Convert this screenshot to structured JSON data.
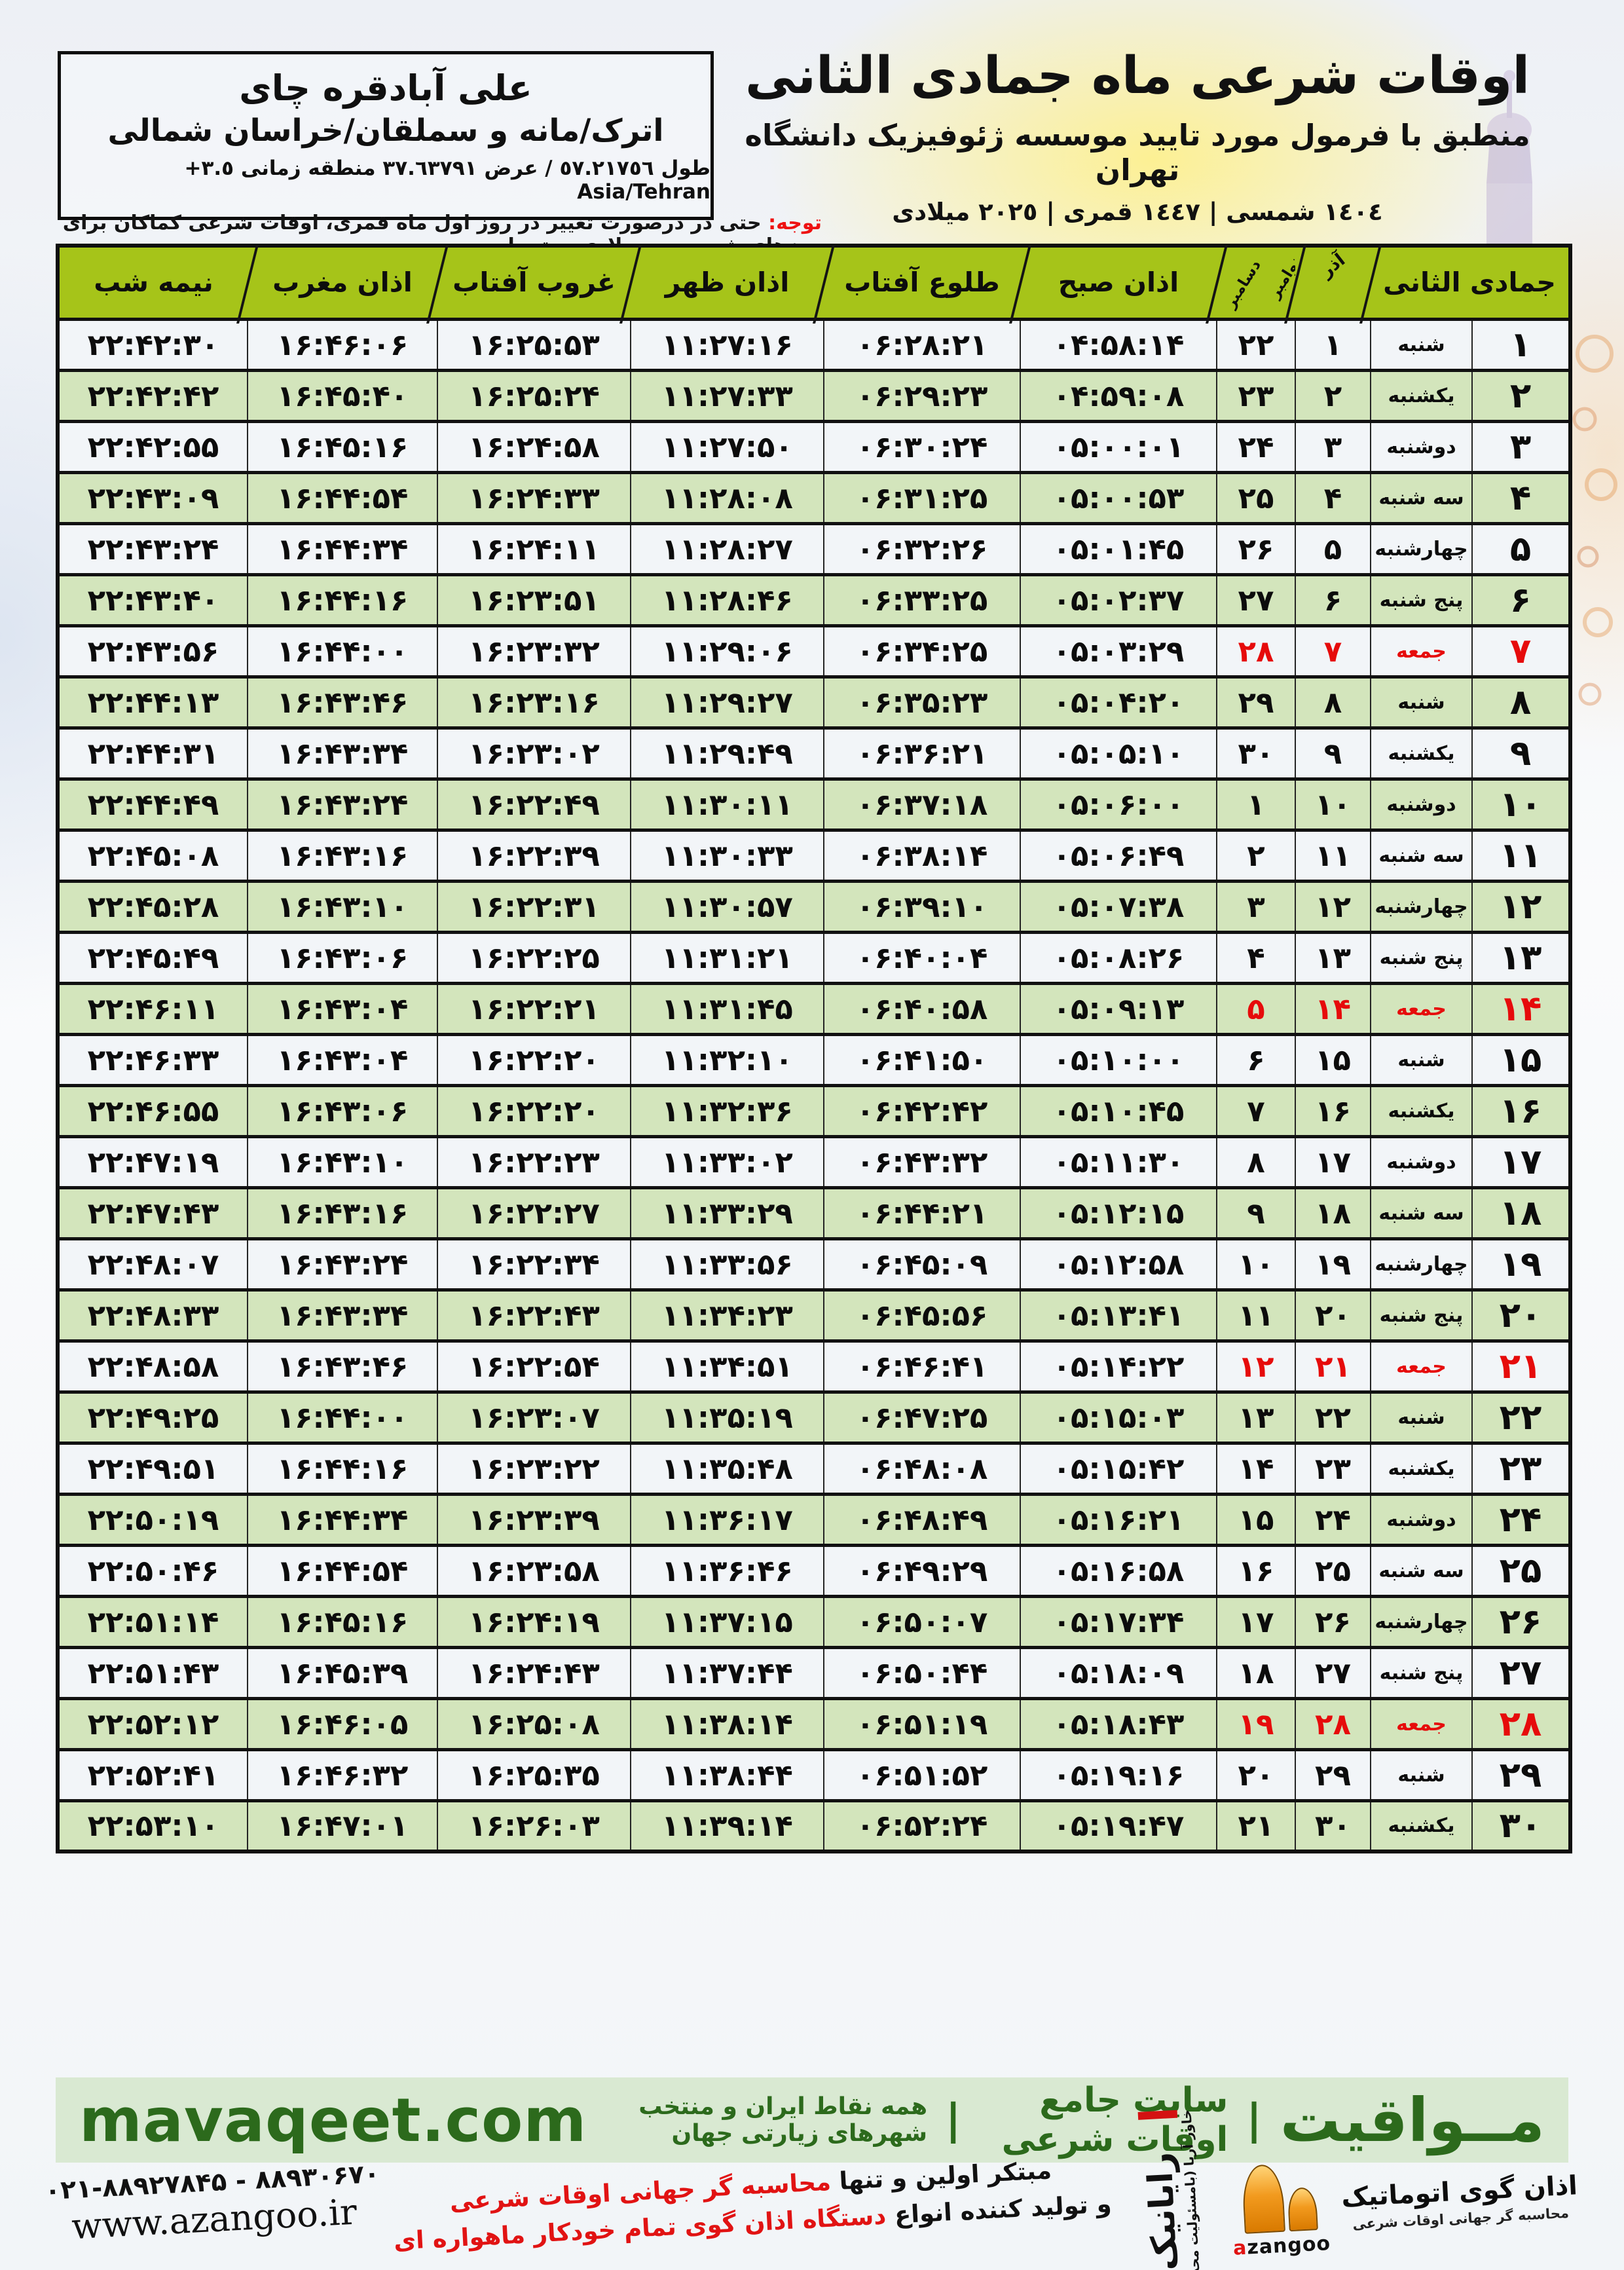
{
  "header": {
    "title": "اوقات شرعی ماه جمادی الثانی",
    "subtitle": "منطبق با فرمول مورد تایید موسسه ژئوفیزیک دانشگاه تهران",
    "date_line": "١٤٠٤ شمسی | ١٤٤٧ قمری | ٢٠٢٥ میلادی"
  },
  "location": {
    "name": "علی آبادقره چای",
    "region": "اترک/مانه و سملقان/خراسان شمالی",
    "coords": "طول ٥٧.٢١٧٥٦ / عرض ٣٧.٦٣٧٩١ منطقه زمانی ٣.٥+ Asia/Tehran"
  },
  "notice": {
    "label": "توجه:",
    "text": "حتی در درصورت تغییر در روز اول ماه قمری، اوقات شرعی کماکان برای روزهای شمسی و میلادی معتبر است."
  },
  "table": {
    "headers": {
      "midnight": "نیمه شب",
      "maghrib": "اذان مغرب",
      "sunset": "غروب آفتاب",
      "dhuhr": "اذان ظهر",
      "sunrise": "طلوع آفتاب",
      "fajr": "اذان صبح",
      "november": "نوامبر",
      "december": "دسامبر",
      "azar": "آذر",
      "month": "جمادی الثانی"
    },
    "rows": [
      {
        "day": 1,
        "weekday": "شنبه",
        "azar": 1,
        "greg": 22,
        "fajr": "04:58:14",
        "sunrise": "06:28:21",
        "dhuhr": "11:27:16",
        "sunset": "16:25:53",
        "maghrib": "16:46:06",
        "midnight": "22:42:30",
        "friday": false
      },
      {
        "day": 2,
        "weekday": "یکشنبه",
        "azar": 2,
        "greg": 23,
        "fajr": "04:59:08",
        "sunrise": "06:29:23",
        "dhuhr": "11:27:33",
        "sunset": "16:25:24",
        "maghrib": "16:45:40",
        "midnight": "22:42:42",
        "friday": false
      },
      {
        "day": 3,
        "weekday": "دوشنبه",
        "azar": 3,
        "greg": 24,
        "fajr": "05:00:01",
        "sunrise": "06:30:24",
        "dhuhr": "11:27:50",
        "sunset": "16:24:58",
        "maghrib": "16:45:16",
        "midnight": "22:42:55",
        "friday": false
      },
      {
        "day": 4,
        "weekday": "سه شنبه",
        "azar": 4,
        "greg": 25,
        "fajr": "05:00:53",
        "sunrise": "06:31:25",
        "dhuhr": "11:28:08",
        "sunset": "16:24:33",
        "maghrib": "16:44:54",
        "midnight": "22:43:09",
        "friday": false
      },
      {
        "day": 5,
        "weekday": "چهارشنبه",
        "azar": 5,
        "greg": 26,
        "fajr": "05:01:45",
        "sunrise": "06:32:26",
        "dhuhr": "11:28:27",
        "sunset": "16:24:11",
        "maghrib": "16:44:34",
        "midnight": "22:43:24",
        "friday": false
      },
      {
        "day": 6,
        "weekday": "پنج شنبه",
        "azar": 6,
        "greg": 27,
        "fajr": "05:02:37",
        "sunrise": "06:33:25",
        "dhuhr": "11:28:46",
        "sunset": "16:23:51",
        "maghrib": "16:44:16",
        "midnight": "22:43:40",
        "friday": false
      },
      {
        "day": 7,
        "weekday": "جمعه",
        "azar": 7,
        "greg": 28,
        "fajr": "05:03:29",
        "sunrise": "06:34:25",
        "dhuhr": "11:29:06",
        "sunset": "16:23:32",
        "maghrib": "16:44:00",
        "midnight": "22:43:56",
        "friday": true
      },
      {
        "day": 8,
        "weekday": "شنبه",
        "azar": 8,
        "greg": 29,
        "fajr": "05:04:20",
        "sunrise": "06:35:23",
        "dhuhr": "11:29:27",
        "sunset": "16:23:16",
        "maghrib": "16:43:46",
        "midnight": "22:44:13",
        "friday": false
      },
      {
        "day": 9,
        "weekday": "یکشنبه",
        "azar": 9,
        "greg": 30,
        "fajr": "05:05:10",
        "sunrise": "06:36:21",
        "dhuhr": "11:29:49",
        "sunset": "16:23:02",
        "maghrib": "16:43:34",
        "midnight": "22:44:31",
        "friday": false
      },
      {
        "day": 10,
        "weekday": "دوشنبه",
        "azar": 10,
        "greg": 1,
        "fajr": "05:06:00",
        "sunrise": "06:37:18",
        "dhuhr": "11:30:11",
        "sunset": "16:22:49",
        "maghrib": "16:43:24",
        "midnight": "22:44:49",
        "friday": false
      },
      {
        "day": 11,
        "weekday": "سه شنبه",
        "azar": 11,
        "greg": 2,
        "fajr": "05:06:49",
        "sunrise": "06:38:14",
        "dhuhr": "11:30:33",
        "sunset": "16:22:39",
        "maghrib": "16:43:16",
        "midnight": "22:45:08",
        "friday": false
      },
      {
        "day": 12,
        "weekday": "چهارشنبه",
        "azar": 12,
        "greg": 3,
        "fajr": "05:07:38",
        "sunrise": "06:39:10",
        "dhuhr": "11:30:57",
        "sunset": "16:22:31",
        "maghrib": "16:43:10",
        "midnight": "22:45:28",
        "friday": false
      },
      {
        "day": 13,
        "weekday": "پنج شنبه",
        "azar": 13,
        "greg": 4,
        "fajr": "05:08:26",
        "sunrise": "06:40:04",
        "dhuhr": "11:31:21",
        "sunset": "16:22:25",
        "maghrib": "16:43:06",
        "midnight": "22:45:49",
        "friday": false
      },
      {
        "day": 14,
        "weekday": "جمعه",
        "azar": 14,
        "greg": 5,
        "fajr": "05:09:13",
        "sunrise": "06:40:58",
        "dhuhr": "11:31:45",
        "sunset": "16:22:21",
        "maghrib": "16:43:04",
        "midnight": "22:46:11",
        "friday": true
      },
      {
        "day": 15,
        "weekday": "شنبه",
        "azar": 15,
        "greg": 6,
        "fajr": "05:10:00",
        "sunrise": "06:41:50",
        "dhuhr": "11:32:10",
        "sunset": "16:22:20",
        "maghrib": "16:43:04",
        "midnight": "22:46:33",
        "friday": false
      },
      {
        "day": 16,
        "weekday": "یکشنبه",
        "azar": 16,
        "greg": 7,
        "fajr": "05:10:45",
        "sunrise": "06:42:42",
        "dhuhr": "11:32:36",
        "sunset": "16:22:20",
        "maghrib": "16:43:06",
        "midnight": "22:46:55",
        "friday": false
      },
      {
        "day": 17,
        "weekday": "دوشنبه",
        "azar": 17,
        "greg": 8,
        "fajr": "05:11:30",
        "sunrise": "06:43:32",
        "dhuhr": "11:33:02",
        "sunset": "16:22:23",
        "maghrib": "16:43:10",
        "midnight": "22:47:19",
        "friday": false
      },
      {
        "day": 18,
        "weekday": "سه شنبه",
        "azar": 18,
        "greg": 9,
        "fajr": "05:12:15",
        "sunrise": "06:44:21",
        "dhuhr": "11:33:29",
        "sunset": "16:22:27",
        "maghrib": "16:43:16",
        "midnight": "22:47:43",
        "friday": false
      },
      {
        "day": 19,
        "weekday": "چهارشنبه",
        "azar": 19,
        "greg": 10,
        "fajr": "05:12:58",
        "sunrise": "06:45:09",
        "dhuhr": "11:33:56",
        "sunset": "16:22:34",
        "maghrib": "16:43:24",
        "midnight": "22:48:07",
        "friday": false
      },
      {
        "day": 20,
        "weekday": "پنج شنبه",
        "azar": 20,
        "greg": 11,
        "fajr": "05:13:41",
        "sunrise": "06:45:56",
        "dhuhr": "11:34:23",
        "sunset": "16:22:43",
        "maghrib": "16:43:34",
        "midnight": "22:48:33",
        "friday": false
      },
      {
        "day": 21,
        "weekday": "جمعه",
        "azar": 21,
        "greg": 12,
        "fajr": "05:14:22",
        "sunrise": "06:46:41",
        "dhuhr": "11:34:51",
        "sunset": "16:22:54",
        "maghrib": "16:43:46",
        "midnight": "22:48:58",
        "friday": true
      },
      {
        "day": 22,
        "weekday": "شنبه",
        "azar": 22,
        "greg": 13,
        "fajr": "05:15:03",
        "sunrise": "06:47:25",
        "dhuhr": "11:35:19",
        "sunset": "16:23:07",
        "maghrib": "16:44:00",
        "midnight": "22:49:25",
        "friday": false
      },
      {
        "day": 23,
        "weekday": "یکشنبه",
        "azar": 23,
        "greg": 14,
        "fajr": "05:15:42",
        "sunrise": "06:48:08",
        "dhuhr": "11:35:48",
        "sunset": "16:23:22",
        "maghrib": "16:44:16",
        "midnight": "22:49:51",
        "friday": false
      },
      {
        "day": 24,
        "weekday": "دوشنبه",
        "azar": 24,
        "greg": 15,
        "fajr": "05:16:21",
        "sunrise": "06:48:49",
        "dhuhr": "11:36:17",
        "sunset": "16:23:39",
        "maghrib": "16:44:34",
        "midnight": "22:50:19",
        "friday": false
      },
      {
        "day": 25,
        "weekday": "سه شنبه",
        "azar": 25,
        "greg": 16,
        "fajr": "05:16:58",
        "sunrise": "06:49:29",
        "dhuhr": "11:36:46",
        "sunset": "16:23:58",
        "maghrib": "16:44:54",
        "midnight": "22:50:46",
        "friday": false
      },
      {
        "day": 26,
        "weekday": "چهارشنبه",
        "azar": 26,
        "greg": 17,
        "fajr": "05:17:34",
        "sunrise": "06:50:07",
        "dhuhr": "11:37:15",
        "sunset": "16:24:19",
        "maghrib": "16:45:16",
        "midnight": "22:51:14",
        "friday": false
      },
      {
        "day": 27,
        "weekday": "پنج شنبه",
        "azar": 27,
        "greg": 18,
        "fajr": "05:18:09",
        "sunrise": "06:50:44",
        "dhuhr": "11:37:44",
        "sunset": "16:24:43",
        "maghrib": "16:45:39",
        "midnight": "22:51:43",
        "friday": false
      },
      {
        "day": 28,
        "weekday": "جمعه",
        "azar": 28,
        "greg": 19,
        "fajr": "05:18:43",
        "sunrise": "06:51:19",
        "dhuhr": "11:38:14",
        "sunset": "16:25:08",
        "maghrib": "16:46:05",
        "midnight": "22:52:12",
        "friday": true
      },
      {
        "day": 29,
        "weekday": "شنبه",
        "azar": 29,
        "greg": 20,
        "fajr": "05:19:16",
        "sunrise": "06:51:52",
        "dhuhr": "11:38:44",
        "sunset": "16:25:35",
        "maghrib": "16:46:32",
        "midnight": "22:52:41",
        "friday": false
      },
      {
        "day": 30,
        "weekday": "یکشنبه",
        "azar": 30,
        "greg": 21,
        "fajr": "05:19:47",
        "sunrise": "06:52:24",
        "dhuhr": "11:39:14",
        "sunset": "16:26:03",
        "maghrib": "16:47:01",
        "midnight": "22:53:10",
        "friday": false
      }
    ]
  },
  "mavaqeet": {
    "brand": "مــواقیت",
    "separator": "|",
    "site_label": "سایت جامع اوقات شرعی",
    "coverage": "همه نقاط ایران و منتخب شهرهای زیارتی جهان",
    "domain": "mavaqeet.com"
  },
  "footer": {
    "phone": "۰۲۱-۸۸۹۲۷۸۴۵ - ۸۸۹۳۰۶۷۰",
    "website": "www.azangoo.ir",
    "line1_black": "مبتکر اولین و تنها",
    "line1_red": "محاسبه گر جهانی اوقات شرعی",
    "line2_black": "و تولید کننده انواع",
    "line2_red": "دستگاه اذان گوی تمام خودکار ماهواره ای",
    "rayanik_name": "رایانیک",
    "rayanik_sub": "خاور آریا (بامسئولیت محدود)",
    "azangoo_title": "اذان گوی اتوماتیک",
    "azangoo_sub": "محاسبه گر جهانی اوقات شرعی",
    "azangoo_domain_first": "a",
    "azangoo_domain_rest": "zangoo"
  },
  "colors": {
    "header_green": "#a6c419",
    "row_green": "#d3e5bc",
    "row_light": "#f2f5f8",
    "friday_red": "#e60b0b",
    "notice_red": "#ee1111",
    "mavaqeet_bar_bg": "#d9e9d2",
    "mavaqeet_text": "#2c6a1c",
    "bottom_bar_green": "#a3c614",
    "dome_orange": "#f29a1e"
  }
}
